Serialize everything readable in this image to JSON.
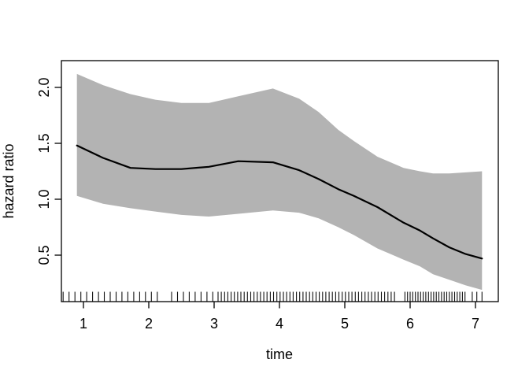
{
  "chart_data": {
    "type": "line",
    "title": "",
    "xlabel": "time",
    "ylabel": "hazard ratio",
    "xlim": [
      0.663,
      7.349
    ],
    "ylim": [
      0.085,
      2.239
    ],
    "grid": false,
    "legend": "none",
    "x_ticks": [
      1,
      2,
      3,
      4,
      5,
      6,
      7
    ],
    "x_tick_labels": [
      "1",
      "2",
      "3",
      "4",
      "5",
      "6",
      "7"
    ],
    "y_ticks": [
      0.5,
      1.0,
      1.5,
      2.0
    ],
    "y_tick_labels": [
      "0.5",
      "1.0",
      "1.5",
      "2.0"
    ],
    "band_color": "#b3b3b3",
    "line_color": "#000000",
    "axis_color": "#000000",
    "series": [
      {
        "name": "fit",
        "x": [
          0.9,
          1.3,
          1.72,
          2.1,
          2.5,
          2.92,
          3.37,
          3.9,
          4.3,
          4.6,
          4.9,
          5.14,
          5.5,
          5.9,
          6.15,
          6.35,
          6.6,
          6.85,
          7.1
        ],
        "y": [
          1.48,
          1.37,
          1.28,
          1.27,
          1.27,
          1.29,
          1.34,
          1.33,
          1.26,
          1.18,
          1.09,
          1.03,
          0.93,
          0.79,
          0.72,
          0.65,
          0.57,
          0.51,
          0.47
        ]
      },
      {
        "name": "upper",
        "x": [
          0.9,
          1.3,
          1.72,
          2.1,
          2.5,
          2.92,
          3.37,
          3.9,
          4.3,
          4.6,
          4.9,
          5.14,
          5.5,
          5.9,
          6.15,
          6.35,
          6.6,
          6.85,
          7.1
        ],
        "y": [
          2.12,
          2.02,
          1.94,
          1.89,
          1.86,
          1.86,
          1.92,
          1.99,
          1.9,
          1.78,
          1.62,
          1.52,
          1.38,
          1.28,
          1.25,
          1.23,
          1.23,
          1.24,
          1.25
        ]
      },
      {
        "name": "lower",
        "x": [
          0.9,
          1.3,
          1.72,
          2.1,
          2.5,
          2.92,
          3.37,
          3.9,
          4.3,
          4.6,
          4.9,
          5.14,
          5.5,
          5.9,
          6.15,
          6.35,
          6.6,
          6.85,
          7.1
        ],
        "y": [
          1.03,
          0.96,
          0.92,
          0.89,
          0.86,
          0.845,
          0.87,
          0.9,
          0.88,
          0.83,
          0.75,
          0.68,
          0.56,
          0.46,
          0.4,
          0.33,
          0.28,
          0.23,
          0.19
        ]
      }
    ],
    "rug_times": [
      0.69,
      0.78,
      0.87,
      0.96,
      1.05,
      1.14,
      1.23,
      1.32,
      1.41,
      1.5,
      1.59,
      1.68,
      1.77,
      1.86,
      1.95,
      2.04,
      2.13,
      2.35,
      2.44,
      2.53,
      2.62,
      2.71,
      2.8,
      2.89,
      2.98,
      3.06,
      3.11,
      3.16,
      3.21,
      3.26,
      3.31,
      3.36,
      3.41,
      3.46,
      3.51,
      3.56,
      3.61,
      3.66,
      3.71,
      3.76,
      3.81,
      3.86,
      3.91,
      3.96,
      4.01,
      4.06,
      4.11,
      4.16,
      4.21,
      4.26,
      4.31,
      4.36,
      4.41,
      4.46,
      4.51,
      4.56,
      4.61,
      4.66,
      4.71,
      4.76,
      4.81,
      4.86,
      4.91,
      4.96,
      5.01,
      5.06,
      5.11,
      5.16,
      5.21,
      5.26,
      5.31,
      5.36,
      5.41,
      5.46,
      5.51,
      5.56,
      5.61,
      5.66,
      5.71,
      5.76,
      5.92,
      5.96,
      6.0,
      6.04,
      6.08,
      6.12,
      6.16,
      6.2,
      6.24,
      6.28,
      6.32,
      6.36,
      6.4,
      6.44,
      6.48,
      6.52,
      6.56,
      6.6,
      6.64,
      6.68,
      6.72,
      6.76,
      6.8,
      6.84,
      6.95,
      7.02,
      7.1
    ]
  }
}
